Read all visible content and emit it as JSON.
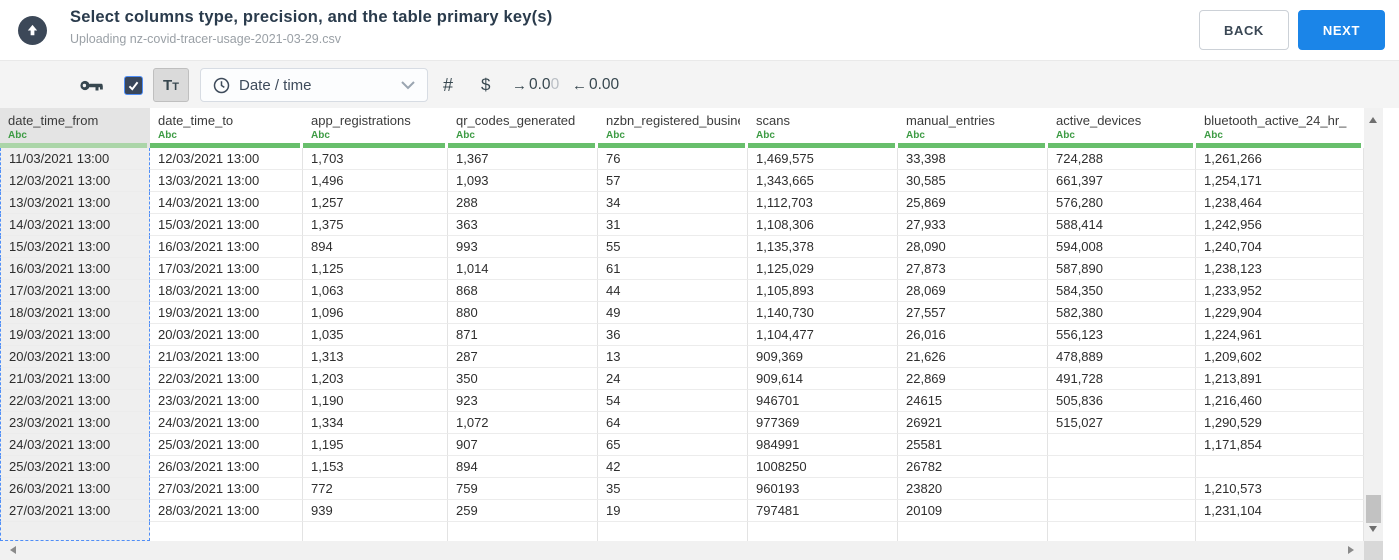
{
  "header": {
    "title": "Select columns type, precision, and the table primary key(s)",
    "subtitle": "Uploading nz-covid-tracer-usage-2021-03-29.csv",
    "back_label": "BACK",
    "next_label": "NEXT"
  },
  "toolbar": {
    "checkbox_checked": true,
    "text_type_label": "Tt",
    "type_dropdown": {
      "value": "Date / time"
    },
    "number_label": "#",
    "currency_label": "$",
    "increase_precision": {
      "arrow": "→",
      "dark": "0.0",
      "faded": "0"
    },
    "decrease_precision": {
      "arrow": "←",
      "dark": "0.00",
      "faded": ""
    }
  },
  "icons": {
    "upload_badge": "cloud-upload-icon",
    "primary_key": "key-icon",
    "selected_checkbox": "checkbox-checked-icon",
    "datetime_type": "clock-icon",
    "dropdown_chevron": "chevron-down-icon",
    "scroll_up": "scroll-up-arrow-icon",
    "scroll_down": "scroll-down-arrow-icon",
    "scroll_left": "scroll-left-arrow-icon",
    "scroll_right": "scroll-right-arrow-icon"
  },
  "colors": {
    "accent_blue": "#1b85e8",
    "selection_dashed_blue": "#4f8ef7",
    "type_label_green": "#3d9b44",
    "header_bar_green": "#68bf6c",
    "icon_dark": "#37474f"
  },
  "table": {
    "columns": [
      {
        "name": "date_time_from",
        "type": "Abc",
        "selected": true
      },
      {
        "name": "date_time_to",
        "type": "Abc",
        "selected": false
      },
      {
        "name": "app_registrations",
        "type": "Abc",
        "selected": false
      },
      {
        "name": "qr_codes_generated",
        "type": "Abc",
        "selected": false
      },
      {
        "name": "nzbn_registered_busine",
        "type": "Abc",
        "selected": false
      },
      {
        "name": "scans",
        "type": "Abc",
        "selected": false
      },
      {
        "name": "manual_entries",
        "type": "Abc",
        "selected": false
      },
      {
        "name": "active_devices",
        "type": "Abc",
        "selected": false
      },
      {
        "name": "bluetooth_active_24_hr_",
        "type": "Abc",
        "selected": false
      }
    ],
    "rows": [
      [
        "11/03/2021 13:00",
        "12/03/2021 13:00",
        "1,703",
        "1,367",
        "76",
        "1,469,575",
        "33,398",
        "724,288",
        "1,261,266"
      ],
      [
        "12/03/2021 13:00",
        "13/03/2021 13:00",
        "1,496",
        "1,093",
        "57",
        "1,343,665",
        "30,585",
        "661,397",
        "1,254,171"
      ],
      [
        "13/03/2021 13:00",
        "14/03/2021 13:00",
        "1,257",
        "288",
        "34",
        "1,112,703",
        "25,869",
        "576,280",
        "1,238,464"
      ],
      [
        "14/03/2021 13:00",
        "15/03/2021 13:00",
        "1,375",
        "363",
        "31",
        "1,108,306",
        "27,933",
        "588,414",
        "1,242,956"
      ],
      [
        "15/03/2021 13:00",
        "16/03/2021 13:00",
        "894",
        "993",
        "55",
        "1,135,378",
        "28,090",
        "594,008",
        "1,240,704"
      ],
      [
        "16/03/2021 13:00",
        "17/03/2021 13:00",
        "1,125",
        "1,014",
        "61",
        "1,125,029",
        "27,873",
        "587,890",
        "1,238,123"
      ],
      [
        "17/03/2021 13:00",
        "18/03/2021 13:00",
        "1,063",
        "868",
        "44",
        "1,105,893",
        "28,069",
        "584,350",
        "1,233,952"
      ],
      [
        "18/03/2021 13:00",
        "19/03/2021 13:00",
        "1,096",
        "880",
        "49",
        "1,140,730",
        "27,557",
        "582,380",
        "1,229,904"
      ],
      [
        "19/03/2021 13:00",
        "20/03/2021 13:00",
        "1,035",
        "871",
        "36",
        "1,104,477",
        "26,016",
        "556,123",
        "1,224,961"
      ],
      [
        "20/03/2021 13:00",
        "21/03/2021 13:00",
        "1,313",
        "287",
        "13",
        "909,369",
        "21,626",
        "478,889",
        "1,209,602"
      ],
      [
        "21/03/2021 13:00",
        "22/03/2021 13:00",
        "1,203",
        "350",
        "24",
        "909,614",
        "22,869",
        "491,728",
        "1,213,891"
      ],
      [
        "22/03/2021 13:00",
        "23/03/2021 13:00",
        "1,190",
        "923",
        "54",
        "946701",
        "24615",
        "505,836",
        "1,216,460"
      ],
      [
        "23/03/2021 13:00",
        "24/03/2021 13:00",
        "1,334",
        "1,072",
        "64",
        "977369",
        "26921",
        "515,027",
        "1,290,529"
      ],
      [
        "24/03/2021 13:00",
        "25/03/2021 13:00",
        "1,195",
        "907",
        "65",
        "984991",
        "25581",
        "",
        "1,171,854"
      ],
      [
        "25/03/2021 13:00",
        "26/03/2021 13:00",
        "1,153",
        "894",
        "42",
        "1008250",
        "26782",
        "",
        ""
      ],
      [
        "26/03/2021 13:00",
        "27/03/2021 13:00",
        "772",
        "759",
        "35",
        "960193",
        "23820",
        "",
        "1,210,573"
      ],
      [
        "27/03/2021 13:00",
        "28/03/2021 13:00",
        "939",
        "259",
        "19",
        "797481",
        "20109",
        "",
        "1,231,104"
      ]
    ]
  }
}
